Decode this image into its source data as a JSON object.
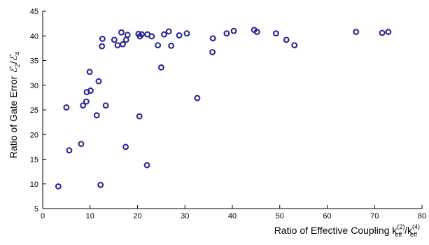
{
  "chart_data": {
    "type": "scatter",
    "xlabel": "Ratio of Effective Coupling k_eff^(2) / k_eff^(4)",
    "ylabel": "Ratio of Gate Error ℰ2/ℰ4",
    "xlim": [
      0,
      80
    ],
    "ylim": [
      5,
      45
    ],
    "xticks": [
      0,
      10,
      20,
      30,
      40,
      50,
      60,
      70,
      80
    ],
    "yticks": [
      5,
      10,
      15,
      20,
      25,
      30,
      35,
      40,
      45
    ],
    "grid": false,
    "marker_color": "#2a2a8f",
    "series": [
      {
        "points": [
          [
            3.3,
            9.5
          ],
          [
            5.0,
            25.5
          ],
          [
            5.6,
            16.8
          ],
          [
            8.1,
            18.1
          ],
          [
            8.5,
            25.9
          ],
          [
            9.2,
            26.7
          ],
          [
            9.3,
            28.6
          ],
          [
            9.9,
            32.7
          ],
          [
            10.1,
            28.9
          ],
          [
            11.4,
            23.9
          ],
          [
            11.8,
            30.8
          ],
          [
            12.2,
            9.8
          ],
          [
            12.5,
            37.9
          ],
          [
            12.6,
            39.4
          ],
          [
            13.3,
            25.9
          ],
          [
            15.1,
            39.2
          ],
          [
            15.8,
            38.1
          ],
          [
            16.6,
            40.7
          ],
          [
            16.9,
            38.3
          ],
          [
            17.5,
            17.5
          ],
          [
            17.6,
            39.2
          ],
          [
            17.9,
            40.2
          ],
          [
            20.2,
            40.4
          ],
          [
            20.4,
            23.7
          ],
          [
            20.5,
            39.9
          ],
          [
            20.9,
            40.3
          ],
          [
            22.0,
            13.8
          ],
          [
            22.1,
            40.3
          ],
          [
            23.0,
            39.9
          ],
          [
            24.3,
            38.1
          ],
          [
            25.0,
            33.6
          ],
          [
            25.6,
            40.3
          ],
          [
            26.6,
            40.9
          ],
          [
            27.1,
            38.0
          ],
          [
            28.8,
            40.1
          ],
          [
            30.4,
            40.5
          ],
          [
            32.6,
            27.4
          ],
          [
            35.8,
            36.7
          ],
          [
            35.9,
            39.5
          ],
          [
            38.8,
            40.5
          ],
          [
            40.3,
            41.0
          ],
          [
            44.6,
            41.2
          ],
          [
            45.2,
            40.8
          ],
          [
            49.2,
            40.5
          ],
          [
            51.4,
            39.2
          ],
          [
            53.1,
            38.1
          ],
          [
            66.1,
            40.8
          ],
          [
            71.6,
            40.6
          ],
          [
            72.9,
            40.8
          ]
        ]
      }
    ]
  }
}
